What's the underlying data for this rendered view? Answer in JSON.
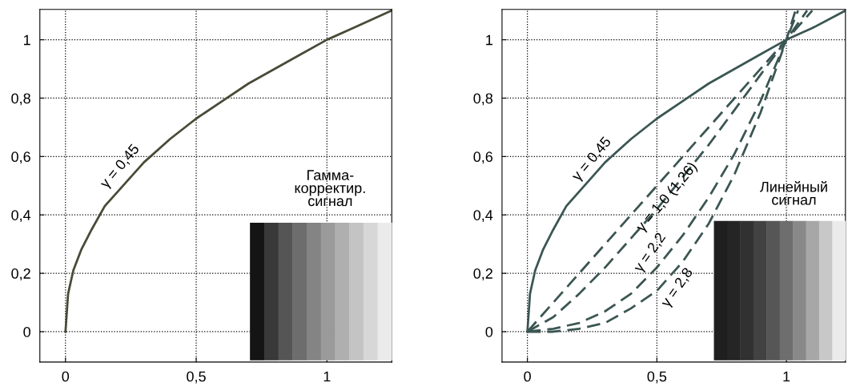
{
  "chart_data": [
    {
      "type": "line",
      "xlim": [
        -0.098,
        1.248
      ],
      "ylim": [
        -0.104,
        1.104
      ],
      "xticks": [
        0,
        {
          "value": 0.5,
          "label": "0,5"
        },
        1
      ],
      "yticks": [
        0,
        {
          "value": 0.2,
          "label": "0,2"
        },
        {
          "value": 0.4,
          "label": "0,4"
        },
        {
          "value": 0.6,
          "label": "0,6"
        },
        {
          "value": 0.8,
          "label": "0,8"
        },
        1
      ],
      "grid": true,
      "marker": "none",
      "series": [
        {
          "color": "#4a4a38",
          "line_style": "solid",
          "x": [
            0,
            0.01,
            0.03,
            0.06,
            0.1,
            0.15,
            0.2,
            0.3,
            0.4,
            0.5,
            0.6,
            0.7,
            0.8,
            0.9,
            1,
            1.1,
            1.248
          ],
          "values": [
            0,
            0.13,
            0.21,
            0.28,
            0.35,
            0.43,
            0.48,
            0.58,
            0.66,
            0.73,
            0.79,
            0.85,
            0.9,
            0.95,
            1.0,
            1.04,
            1.1
          ]
        }
      ],
      "annotations": [
        "γ = 0,45",
        "Гамма-\nкорректир.\nсигнал"
      ]
    },
    {
      "type": "line",
      "xlim": [
        -0.098,
        1.228
      ],
      "ylim": [
        -0.104,
        1.104
      ],
      "xticks": [
        0,
        {
          "value": 0.5,
          "label": "0,5"
        },
        1
      ],
      "yticks": [
        0,
        {
          "value": 0.2,
          "label": "0,2"
        },
        {
          "value": 0.4,
          "label": "0,4"
        },
        {
          "value": 0.6,
          "label": "0,6"
        },
        {
          "value": 0.8,
          "label": "0,8"
        },
        1
      ],
      "grid": true,
      "marker": "none",
      "series": [
        {
          "color": "#3b5653",
          "line_style": "solid",
          "x": [
            0,
            0.01,
            0.03,
            0.06,
            0.1,
            0.15,
            0.2,
            0.3,
            0.4,
            0.5,
            0.6,
            0.7,
            0.8,
            0.9,
            1,
            1.1,
            1.228
          ],
          "values": [
            0,
            0.13,
            0.21,
            0.28,
            0.35,
            0.43,
            0.48,
            0.58,
            0.66,
            0.73,
            0.79,
            0.85,
            0.9,
            0.95,
            1.0,
            1.04,
            1.1
          ]
        },
        {
          "color": "#3b5653",
          "line_style": "dashed",
          "x": [
            0,
            0.2,
            0.4,
            0.6,
            0.8,
            1,
            1.1
          ],
          "values": [
            0,
            0.2,
            0.4,
            0.6,
            0.8,
            1,
            1.1
          ]
        },
        {
          "color": "#3b5653",
          "line_style": "dashed",
          "x": [
            0,
            0.1,
            0.2,
            0.3,
            0.4,
            0.5,
            0.6,
            0.7,
            0.8,
            0.9,
            1,
            1.08
          ],
          "values": [
            0,
            0.05,
            0.13,
            0.22,
            0.32,
            0.42,
            0.53,
            0.64,
            0.76,
            0.88,
            1,
            1.1
          ]
        },
        {
          "color": "#3b5653",
          "line_style": "dashed",
          "x": [
            0,
            0.1,
            0.2,
            0.3,
            0.4,
            0.5,
            0.6,
            0.7,
            0.8,
            0.9,
            1,
            1.045
          ],
          "values": [
            0,
            0.01,
            0.03,
            0.07,
            0.13,
            0.22,
            0.33,
            0.46,
            0.61,
            0.79,
            1,
            1.1
          ]
        },
        {
          "color": "#3b5653",
          "line_style": "dashed",
          "x": [
            0,
            0.1,
            0.2,
            0.3,
            0.4,
            0.5,
            0.6,
            0.7,
            0.8,
            0.9,
            1,
            1.035
          ],
          "values": [
            0,
            0,
            0.01,
            0.03,
            0.08,
            0.14,
            0.24,
            0.37,
            0.54,
            0.75,
            1,
            1.1
          ]
        }
      ],
      "annotations": [
        "γ = 0,45",
        {
          "text": "γ = 1,0 (1,26)",
          "x": 0.54,
          "y": 0.46
        },
        "γ = 2,2",
        "γ = 2,8",
        "Линейный\nсигнал"
      ]
    }
  ]
}
